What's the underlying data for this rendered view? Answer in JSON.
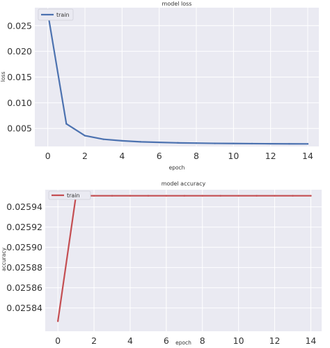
{
  "chart_data": [
    {
      "type": "line",
      "title": "model loss",
      "xlabel": "epoch",
      "ylabel": "loss",
      "xlim": [
        -0.7,
        14.6
      ],
      "ylim": [
        0.0015,
        0.0285
      ],
      "xticks": [
        0,
        2,
        4,
        6,
        8,
        10,
        12,
        14
      ],
      "xtick_labels": [
        "0",
        "2",
        "4",
        "6",
        "8",
        "10",
        "12",
        "14"
      ],
      "yticks": [
        0.005,
        0.01,
        0.015,
        0.02,
        0.025
      ],
      "ytick_labels": [
        "0.005",
        "0.010",
        "0.015",
        "0.020",
        "0.025"
      ],
      "grid": true,
      "legend_position": "top-left",
      "x": [
        0,
        1,
        2,
        3,
        4,
        5,
        6,
        7,
        8,
        9,
        10,
        11,
        12,
        13,
        14
      ],
      "series": [
        {
          "name": "train",
          "color": "#4c72b0",
          "values": [
            0.0275,
            0.0059,
            0.0036,
            0.0029,
            0.0026,
            0.0024,
            0.0023,
            0.0022,
            0.00215,
            0.0021,
            0.00208,
            0.00205,
            0.00203,
            0.00201,
            0.002
          ]
        }
      ]
    },
    {
      "type": "line",
      "title": "model accuracy",
      "xlabel": "epoch",
      "ylabel": "accuracy",
      "xlim": [
        -0.7,
        14.6
      ],
      "ylim": [
        0.025817,
        0.025957
      ],
      "xticks": [
        0,
        2,
        4,
        6,
        8,
        10,
        12,
        14
      ],
      "xtick_labels": [
        "0",
        "2",
        "4",
        "6",
        "8",
        "10",
        "12",
        "14"
      ],
      "yticks": [
        0.02584,
        0.02586,
        0.02588,
        0.0259,
        0.02592,
        0.02594
      ],
      "ytick_labels": [
        "0.02584",
        "0.02586",
        "0.02588",
        "0.02590",
        "0.02592",
        "0.02594"
      ],
      "grid": true,
      "legend_position": "top-left",
      "x": [
        0,
        1,
        2,
        3,
        4,
        5,
        6,
        7,
        8,
        9,
        10,
        11,
        12,
        13,
        14
      ],
      "series": [
        {
          "name": "train",
          "color": "#c44e52",
          "values": [
            0.025827,
            0.025951,
            0.025951,
            0.025951,
            0.025951,
            0.025951,
            0.025951,
            0.025951,
            0.025951,
            0.025951,
            0.025951,
            0.025951,
            0.025951,
            0.025951,
            0.025951
          ]
        }
      ]
    }
  ]
}
